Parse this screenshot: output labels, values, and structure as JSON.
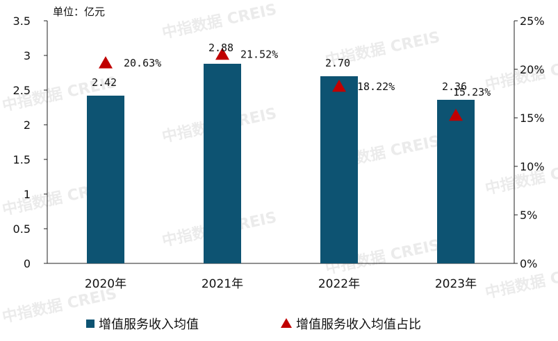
{
  "chart_data": {
    "type": "bar",
    "unit_label": "单位：亿元",
    "categories": [
      "2020年",
      "2021年",
      "2022年",
      "2023年"
    ],
    "series": [
      {
        "name": "增值服务收入均值",
        "kind": "bar",
        "axis": "left",
        "color": "#0d5372",
        "values": [
          2.42,
          2.88,
          2.7,
          2.36
        ],
        "labels": [
          "2.42",
          "2.88",
          "2.70",
          "2.36"
        ]
      },
      {
        "name": "增值服务收入均值占比",
        "kind": "marker",
        "marker": "triangle",
        "axis": "right",
        "color": "#c00000",
        "values": [
          20.63,
          21.52,
          18.22,
          15.23
        ],
        "labels": [
          "20.63%",
          "21.52%",
          "18.22%",
          "15.23%"
        ]
      }
    ],
    "y_left": {
      "ylim": [
        0,
        3.5
      ],
      "ticks": [
        "0",
        "0.5",
        "1",
        "1.5",
        "2",
        "2.5",
        "3",
        "3.5"
      ]
    },
    "y_right": {
      "ylim": [
        0,
        25
      ],
      "ticks": [
        "0%",
        "5%",
        "10%",
        "15%",
        "20%",
        "25%"
      ]
    },
    "grid": false,
    "legend": "bottom"
  },
  "watermark": "中指数据 CREIS"
}
